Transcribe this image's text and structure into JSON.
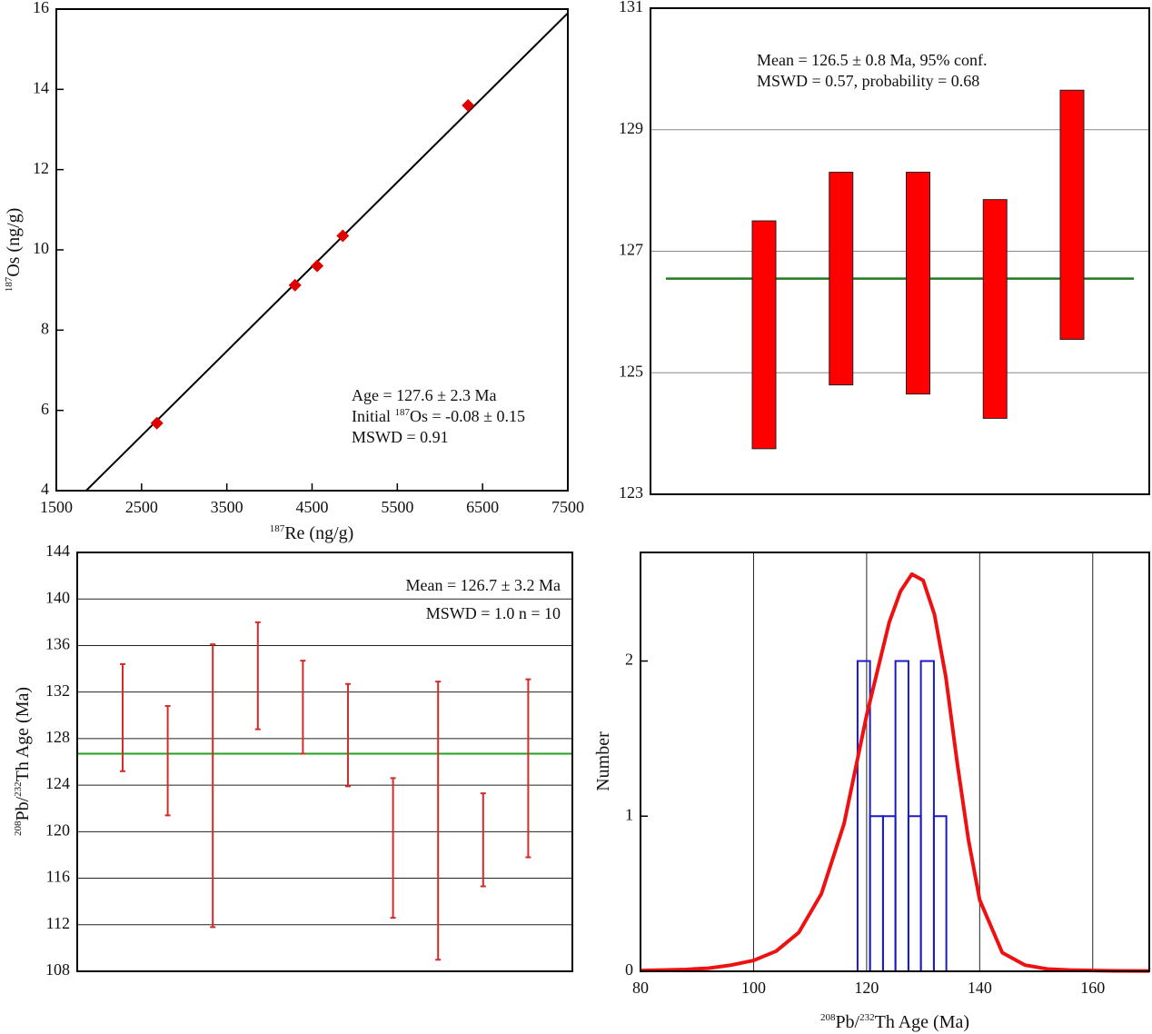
{
  "chart_data": [
    {
      "type": "scatter",
      "xlabel": [
        {
          "sup": "187"
        },
        {
          "text": "Re (ng/g)"
        }
      ],
      "ylabel": [
        {
          "sup": "187"
        },
        {
          "text": "Os (ng/g)"
        }
      ],
      "x": [
        2680,
        4300,
        4560,
        4860,
        6330
      ],
      "values": [
        5.68,
        9.12,
        9.6,
        10.35,
        13.6
      ],
      "color": "#e00000",
      "fit_line": {
        "x": [
          1850,
          7500
        ],
        "y": [
          4,
          15.9
        ],
        "color": "#000000"
      },
      "xlim": [
        1500,
        7500
      ],
      "ylim": [
        4,
        16
      ],
      "xticks": [
        1500,
        2500,
        3500,
        4500,
        5500,
        6500,
        7500
      ],
      "yticks": [
        4,
        6,
        8,
        10,
        12,
        14,
        16
      ],
      "grid": false,
      "annotations": [
        [
          {
            "text": "Age = 127.6 ± 2.3 Ma"
          }
        ],
        [
          {
            "text": "Initial "
          },
          {
            "sup": "187"
          },
          {
            "text": "Os = -0.08 ± 0.15"
          }
        ],
        [
          {
            "text": "MSWD = 0.91"
          }
        ]
      ]
    },
    {
      "type": "range_bar",
      "lows": [
        123.75,
        124.8,
        124.65,
        124.25,
        125.55
      ],
      "highs": [
        127.5,
        128.3,
        128.3,
        127.85,
        129.65
      ],
      "color": "#ff0000",
      "mean": 126.55,
      "mean_color": "#1e7a1e",
      "ylim": [
        123,
        131
      ],
      "yticks": [
        123,
        125,
        127,
        129,
        131
      ],
      "grid": true,
      "annotations": [
        [
          {
            "text": "Mean = 126.5 ± 0.8 Ma, 95% conf."
          }
        ],
        [
          {
            "text": "MSWD = 0.57, probability = 0.68"
          }
        ]
      ]
    },
    {
      "type": "errorbar",
      "ylabel": [
        {
          "sup": "208"
        },
        {
          "text": "Pb/"
        },
        {
          "sup": "232"
        },
        {
          "text": "Th Age (Ma)"
        }
      ],
      "lows": [
        125.2,
        121.4,
        111.8,
        128.8,
        126.7,
        123.9,
        112.6,
        109.0,
        115.3,
        117.8
      ],
      "highs": [
        134.4,
        130.8,
        136.1,
        138.0,
        134.7,
        132.7,
        124.6,
        132.9,
        123.3,
        133.1
      ],
      "color": "#d42a2a",
      "mean": 126.7,
      "mean_color": "#22a022",
      "ylim": [
        108,
        144
      ],
      "yticks": [
        108,
        112,
        116,
        120,
        124,
        128,
        132,
        136,
        140,
        144
      ],
      "grid": true,
      "annotations": [
        [
          {
            "text": "Mean = 126.7 ± 3.2 Ma"
          }
        ],
        [
          {
            "text": "MSWD = 1.0   n = 10"
          }
        ]
      ]
    },
    {
      "type": "histogram",
      "xlabel": [
        {
          "sup": "208"
        },
        {
          "text": "Pb/"
        },
        {
          "sup": "232"
        },
        {
          "text": "Th Age (Ma)"
        }
      ],
      "ylabel": [
        {
          "text": "Number"
        }
      ],
      "bins": [
        118.4,
        120.6,
        122.9,
        125.1,
        127.4,
        129.6,
        131.9,
        134.1
      ],
      "counts": [
        2,
        1,
        1,
        2,
        1,
        2,
        1
      ],
      "color": "#1a1acc",
      "curve": {
        "x": [
          80,
          84,
          88,
          92,
          96,
          100,
          104,
          108,
          112,
          116,
          120,
          124,
          126,
          128,
          130,
          132,
          134,
          136,
          138,
          140,
          144,
          148,
          152,
          156,
          160,
          164,
          170
        ],
        "y": [
          0.005,
          0.008,
          0.012,
          0.02,
          0.04,
          0.07,
          0.13,
          0.25,
          0.5,
          0.95,
          1.65,
          2.25,
          2.45,
          2.56,
          2.52,
          2.3,
          1.9,
          1.35,
          0.85,
          0.46,
          0.12,
          0.04,
          0.015,
          0.008,
          0.005,
          0.003,
          0.002
        ],
        "color": "#ee1111"
      },
      "xlim": [
        80,
        170
      ],
      "ylim": [
        0,
        2.7
      ],
      "xticks": [
        80,
        100,
        120,
        140,
        160
      ],
      "yticks": [
        0,
        1,
        2
      ],
      "grid": true
    }
  ]
}
